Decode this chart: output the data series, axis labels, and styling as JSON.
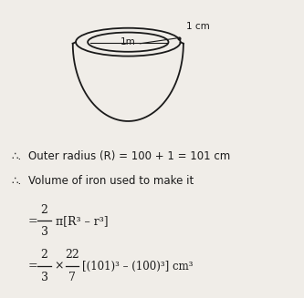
{
  "bg_color": "#f0ede8",
  "line_color": "#1a1a1a",
  "text_color": "#1a1a1a",
  "annotation_1cm": "1 cm",
  "annotation_1m": "1m",
  "line1_prefix": "∴.",
  "line1_rest": "  Outer radius (R) = 100 + 1 = 101 cm",
  "line2_prefix": "∴.",
  "line2_rest": "  Volume of iron used to make it",
  "eq1_rhs": "π[R³ – r³]",
  "eq2_rhs": "[(101)³ – (100)³] cm³",
  "figsize": [
    3.33,
    3.27
  ],
  "dpi": 100
}
